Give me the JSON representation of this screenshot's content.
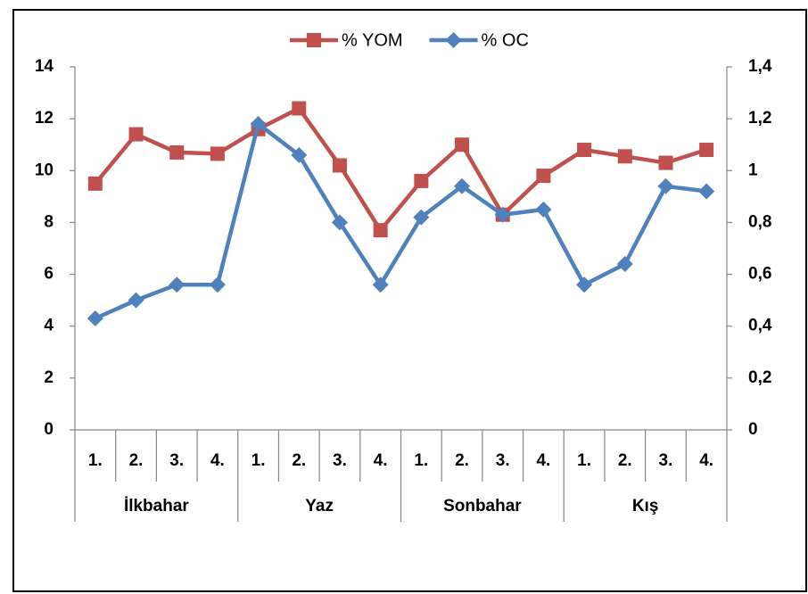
{
  "chart_data": {
    "type": "line",
    "categories": [
      "1.",
      "2.",
      "3.",
      "4.",
      "1.",
      "2.",
      "3.",
      "4.",
      "1.",
      "2.",
      "3.",
      "4.",
      "1.",
      "2.",
      "3.",
      "4."
    ],
    "category_groups": [
      "İlkbahar",
      "Yaz",
      "Sonbahar",
      "Kış"
    ],
    "series": [
      {
        "name": "% YOM",
        "color": "#c0504d",
        "marker": "square",
        "axis": "y",
        "values": [
          9.5,
          11.4,
          10.7,
          10.65,
          11.6,
          12.4,
          10.2,
          7.7,
          9.6,
          11.0,
          8.3,
          9.8,
          10.8,
          10.55,
          10.3,
          10.8
        ]
      },
      {
        "name": "% OC",
        "color": "#4f81bd",
        "marker": "diamond",
        "axis": "y2",
        "values": [
          0.43,
          0.5,
          0.56,
          0.56,
          1.18,
          1.06,
          0.8,
          0.56,
          0.82,
          0.94,
          0.83,
          0.85,
          0.56,
          0.64,
          0.94,
          0.92
        ]
      }
    ],
    "ylim": [
      0,
      14
    ],
    "yticks": [
      0,
      2,
      4,
      6,
      8,
      10,
      12,
      14
    ],
    "y2lim": [
      0,
      1.4
    ],
    "y2ticks": [
      0,
      {
        "value": 0.2,
        "label": "0,2"
      },
      {
        "value": 0.4,
        "label": "0,4"
      },
      {
        "value": 0.6,
        "label": "0,6"
      },
      {
        "value": 0.8,
        "label": "0,8"
      },
      1,
      {
        "value": 1.2,
        "label": "1,2"
      },
      {
        "value": 1.4,
        "label": "1,4"
      }
    ],
    "legend": "top",
    "grid": false
  }
}
